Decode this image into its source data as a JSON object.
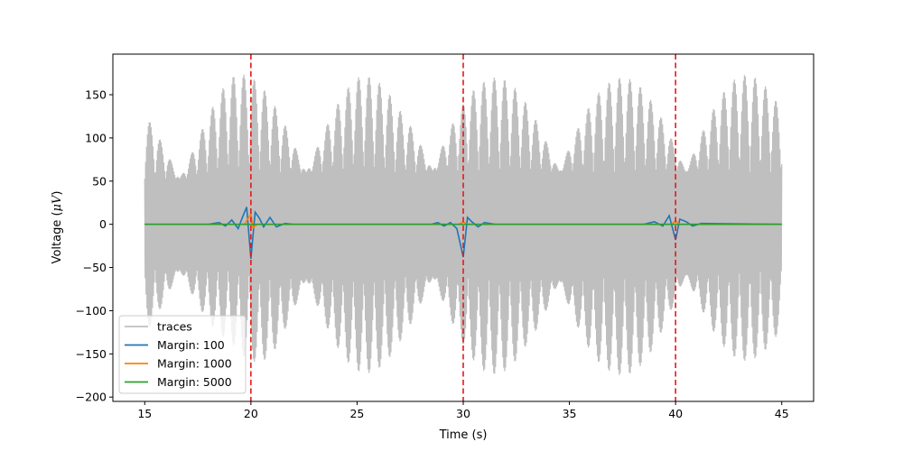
{
  "chart_data": {
    "type": "line",
    "title": "",
    "xlabel": "Time (s)",
    "ylabel": "Voltage (",
    "ylabel_symbol": "μV",
    "ylabel_suffix": ")",
    "xlim": [
      13.5,
      46.5
    ],
    "ylim": [
      -205,
      197
    ],
    "xticks": [
      15,
      20,
      25,
      30,
      35,
      40,
      45
    ],
    "yticks": [
      -200,
      -150,
      -100,
      -50,
      0,
      50,
      100,
      150
    ],
    "grid": false,
    "legend_position": "lower-left",
    "vlines": {
      "x": [
        20,
        30,
        40
      ],
      "color": "#e6191b",
      "style": "dashed"
    },
    "series": [
      {
        "name": "traces",
        "color": "#bfbfbf",
        "description_x_range": [
          15,
          45
        ],
        "envelope": {
          "x": [
            15,
            17,
            19,
            21,
            23,
            25,
            27,
            29,
            31,
            33,
            35,
            37,
            39,
            41,
            43,
            45
          ],
          "max": [
            150,
            150,
            175,
            170,
            170,
            175,
            160,
            180,
            170,
            170,
            175,
            170,
            170,
            175,
            175,
            165
          ],
          "min": [
            -150,
            -150,
            -140,
            -180,
            -180,
            -175,
            -165,
            -175,
            -175,
            -170,
            -190,
            -175,
            -175,
            -165,
            -160,
            -150
          ]
        }
      },
      {
        "name": "Margin: 100",
        "color": "#1f77b4",
        "x": [
          15,
          18.0,
          18.5,
          18.8,
          19.1,
          19.4,
          19.6,
          19.8,
          20.0,
          20.2,
          20.4,
          20.6,
          20.9,
          21.2,
          21.6,
          22.0,
          28.5,
          28.8,
          29.1,
          29.4,
          29.7,
          30.0,
          30.2,
          30.4,
          30.7,
          31.0,
          31.5,
          38.5,
          39.0,
          39.4,
          39.7,
          40.0,
          40.2,
          40.5,
          40.8,
          41.2,
          45
        ],
        "y": [
          0,
          0,
          2,
          -2,
          5,
          -5,
          8,
          20,
          -40,
          14,
          7,
          -3,
          8,
          -3,
          1,
          0,
          0,
          2,
          -2,
          2,
          -5,
          -38,
          8,
          3,
          -3,
          2,
          0,
          0,
          3,
          -2,
          10,
          -18,
          6,
          3,
          -2,
          1,
          0
        ]
      },
      {
        "name": "Margin: 1000",
        "color": "#ff7f0e",
        "x": [
          15,
          19.7,
          19.9,
          20.0,
          20.1,
          20.3,
          29.8,
          30.0,
          30.2,
          39.8,
          40.0,
          40.2,
          45
        ],
        "y": [
          0,
          0,
          8,
          12,
          -4,
          0,
          0,
          3,
          0,
          0,
          4,
          0,
          0
        ]
      },
      {
        "name": "Margin: 5000",
        "color": "#2ca02c",
        "x": [
          15,
          45
        ],
        "y": [
          0,
          0
        ]
      }
    ]
  }
}
